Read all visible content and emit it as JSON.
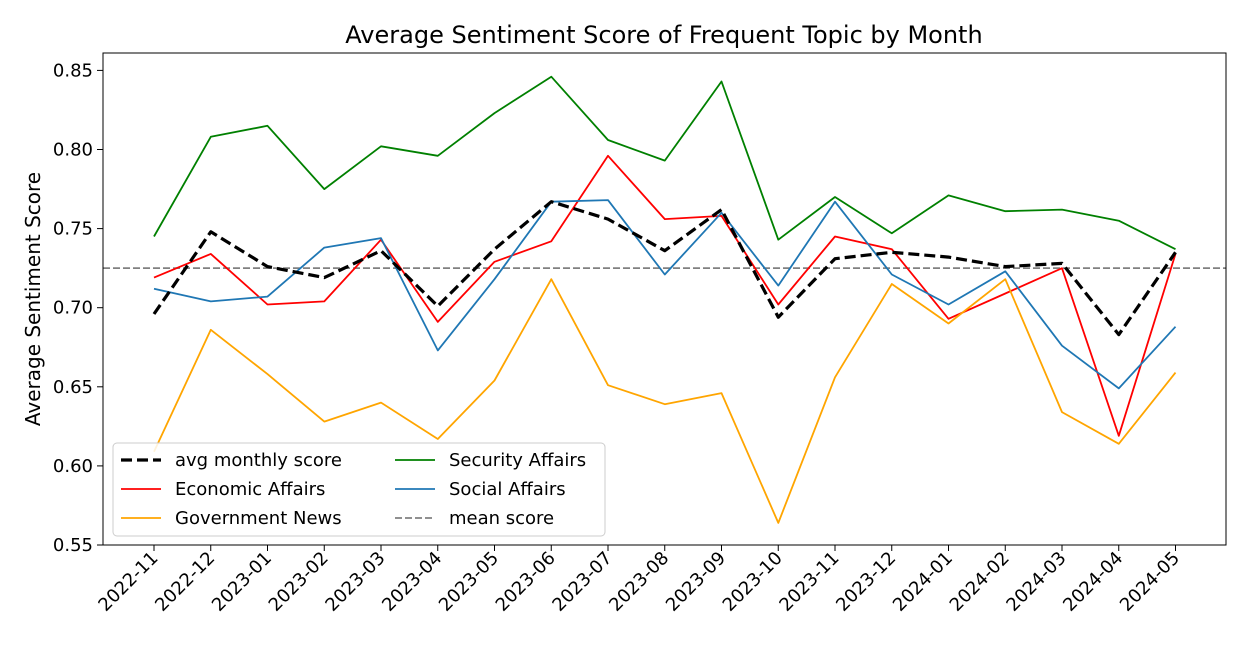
{
  "chart_data": {
    "type": "line",
    "title": "Average Sentiment Score of Frequent Topic by Month",
    "xlabel": "",
    "ylabel": "Average Sentiment Score",
    "ylim": [
      0.55,
      0.86
    ],
    "yticks": [
      "0.55",
      "0.60",
      "0.65",
      "0.70",
      "0.75",
      "0.80",
      "0.85"
    ],
    "grid": false,
    "legend_position": "lower-left",
    "categories": [
      "2022-11",
      "2022-12",
      "2023-01",
      "2023-02",
      "2023-03",
      "2023-04",
      "2023-05",
      "2023-06",
      "2023-07",
      "2023-08",
      "2023-09",
      "2023-10",
      "2023-11",
      "2023-12",
      "2024-01",
      "2024-02",
      "2024-03",
      "2024-04",
      "2024-05"
    ],
    "series": [
      {
        "name": "avg monthly score",
        "color": "#000000",
        "style": "dashed-bold",
        "values": [
          0.696,
          0.748,
          0.726,
          0.719,
          0.736,
          0.701,
          0.737,
          0.767,
          0.756,
          0.736,
          0.762,
          0.694,
          0.731,
          0.735,
          0.732,
          0.726,
          0.728,
          0.683,
          0.735
        ]
      },
      {
        "name": "Economic Affairs",
        "color": "#ff0000",
        "style": "solid",
        "values": [
          0.719,
          0.734,
          0.702,
          0.704,
          0.743,
          0.691,
          0.729,
          0.742,
          0.796,
          0.756,
          0.758,
          0.702,
          0.745,
          0.737,
          0.693,
          0.709,
          0.725,
          0.619,
          0.734
        ]
      },
      {
        "name": "Government News",
        "color": "#ffa500",
        "style": "solid",
        "values": [
          0.609,
          0.686,
          0.658,
          0.628,
          0.64,
          0.617,
          0.654,
          0.718,
          0.651,
          0.639,
          0.646,
          0.564,
          0.656,
          0.715,
          0.69,
          0.718,
          0.634,
          0.614,
          0.659
        ]
      },
      {
        "name": "Security Affairs",
        "color": "#008000",
        "style": "solid",
        "values": [
          0.745,
          0.808,
          0.815,
          0.775,
          0.802,
          0.796,
          0.823,
          0.846,
          0.806,
          0.793,
          0.843,
          0.743,
          0.77,
          0.747,
          0.771,
          0.761,
          0.762,
          0.755,
          0.737
        ]
      },
      {
        "name": "Social Affairs",
        "color": "#1f77b4",
        "style": "solid",
        "values": [
          0.712,
          0.704,
          0.707,
          0.738,
          0.744,
          0.673,
          0.718,
          0.767,
          0.768,
          0.721,
          0.76,
          0.714,
          0.767,
          0.721,
          0.702,
          0.723,
          0.676,
          0.649,
          0.688
        ]
      }
    ],
    "reference_lines": [
      {
        "name": "mean score",
        "value": 0.725,
        "color": "#808080",
        "style": "dashed"
      }
    ]
  }
}
